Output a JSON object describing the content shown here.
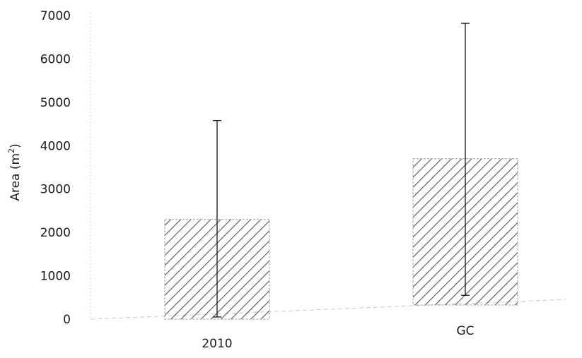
{
  "chart_data": {
    "type": "bar",
    "title": "",
    "xlabel": "",
    "ylabel": "Area (m",
    "ylabel_superscript": "2",
    "ylabel_close": ")",
    "categories": [
      "2010",
      "GC"
    ],
    "values": [
      2300,
      3700
    ],
    "error_high": [
      4580,
      6820
    ],
    "error_low": [
      50,
      550
    ],
    "ylim": [
      0,
      7000
    ],
    "yticks": [
      "0",
      "1000",
      "2000",
      "3000",
      "4000",
      "5000",
      "6000",
      "7000"
    ],
    "grid": false,
    "legend": "none",
    "bar_pattern": "diagonal-hatch",
    "colors": {
      "hatch": "#555555",
      "error_bar": "#111111",
      "axis": "#bbbbbb"
    }
  }
}
